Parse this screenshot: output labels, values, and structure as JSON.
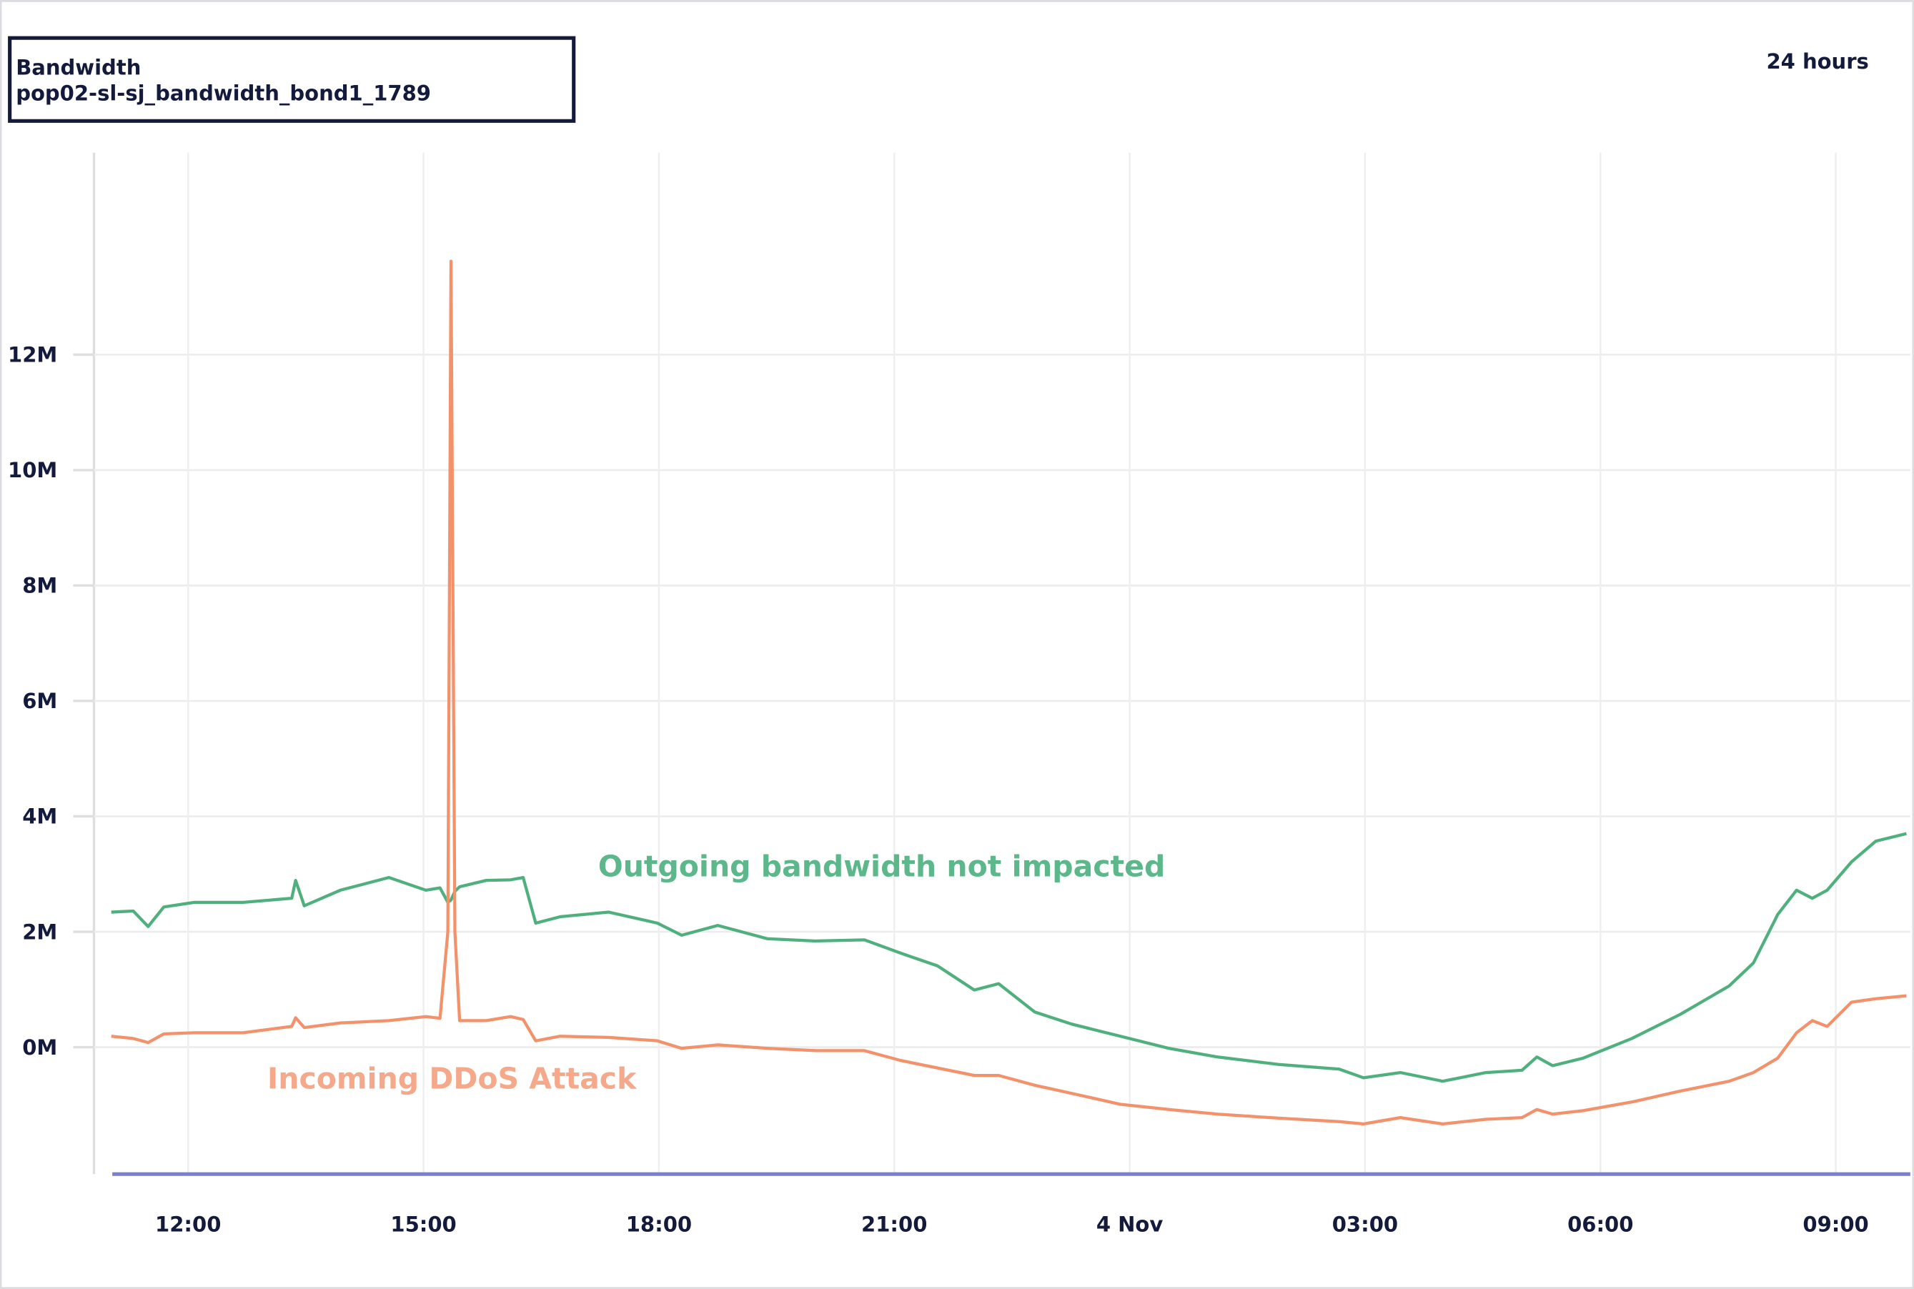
{
  "chart_data": {
    "type": "line",
    "title": "Bandwidth",
    "subtitle": "pop02-sl-sj_bandwidth_bond1_1789",
    "range_label": "24 hours",
    "x": [
      11.02,
      11.3,
      11.49,
      11.69,
      12.08,
      12.7,
      13.32,
      13.37,
      13.48,
      13.94,
      14.56,
      15.03,
      15.21,
      15.31,
      15.35,
      15.4,
      15.46,
      15.8,
      16.11,
      16.27,
      16.43,
      16.74,
      17.36,
      17.98,
      18.29,
      18.75,
      19.38,
      20.0,
      20.62,
      21.08,
      21.55,
      22.02,
      22.33,
      22.79,
      23.26,
      23.88,
      24.5,
      25.12,
      25.9,
      26.67,
      26.98,
      27.45,
      27.99,
      28.54,
      29.0,
      29.19,
      29.39,
      29.78,
      30.4,
      31.02,
      31.64,
      31.95,
      32.26,
      32.5,
      32.7,
      32.89,
      33.2,
      33.51,
      33.9
    ],
    "series": [
      {
        "name": "Outgoing bandwidth not impacted",
        "color": "#4fb07e",
        "values": [
          2.34,
          2.36,
          2.09,
          2.43,
          2.51,
          2.51,
          2.58,
          2.89,
          2.45,
          2.72,
          2.94,
          2.72,
          2.76,
          2.51,
          2.55,
          2.7,
          2.78,
          2.89,
          2.9,
          2.94,
          2.15,
          2.26,
          2.34,
          2.15,
          1.94,
          2.11,
          1.88,
          1.84,
          1.86,
          1.63,
          1.41,
          0.99,
          1.1,
          0.61,
          0.4,
          0.19,
          -0.02,
          -0.17,
          -0.3,
          -0.38,
          -0.53,
          -0.44,
          -0.59,
          -0.44,
          -0.4,
          -0.17,
          -0.32,
          -0.19,
          0.15,
          0.57,
          1.06,
          1.46,
          2.3,
          2.72,
          2.58,
          2.72,
          3.21,
          3.57,
          3.7
        ]
      },
      {
        "name": "Incoming DDoS Attack",
        "color": "#f2916a",
        "values": [
          0.19,
          0.15,
          0.08,
          0.23,
          0.25,
          0.25,
          0.36,
          0.51,
          0.34,
          0.42,
          0.46,
          0.53,
          0.5,
          2.0,
          13.62,
          2.0,
          0.46,
          0.46,
          0.53,
          0.48,
          0.11,
          0.19,
          0.17,
          0.11,
          -0.02,
          0.04,
          -0.02,
          -0.06,
          -0.06,
          -0.23,
          -0.36,
          -0.49,
          -0.49,
          -0.66,
          -0.8,
          -0.99,
          -1.08,
          -1.16,
          -1.23,
          -1.29,
          -1.33,
          -1.22,
          -1.33,
          -1.25,
          -1.22,
          -1.08,
          -1.16,
          -1.1,
          -0.95,
          -0.76,
          -0.59,
          -0.44,
          -0.19,
          0.25,
          0.46,
          0.36,
          0.78,
          0.84,
          0.89
        ]
      }
    ],
    "xlim": [
      10.8,
      33.95
    ],
    "xticks": [
      {
        "value": 12,
        "label": "12:00"
      },
      {
        "value": 15,
        "label": "15:00"
      },
      {
        "value": 18,
        "label": "18:00"
      },
      {
        "value": 21,
        "label": "21:00"
      },
      {
        "value": 24,
        "label": "4 Nov"
      },
      {
        "value": 27,
        "label": "03:00"
      },
      {
        "value": 30,
        "label": "06:00"
      },
      {
        "value": 33,
        "label": "09:00"
      }
    ],
    "ylim": [
      -2.2,
      15.5
    ],
    "yticks": [
      {
        "value": 0,
        "label": "0M"
      },
      {
        "value": 2,
        "label": "2M"
      },
      {
        "value": 4,
        "label": "4M"
      },
      {
        "value": 6,
        "label": "6M"
      },
      {
        "value": 8,
        "label": "8M"
      },
      {
        "value": 10,
        "label": "10M"
      },
      {
        "value": 12,
        "label": "12M"
      }
    ],
    "grid": true
  }
}
